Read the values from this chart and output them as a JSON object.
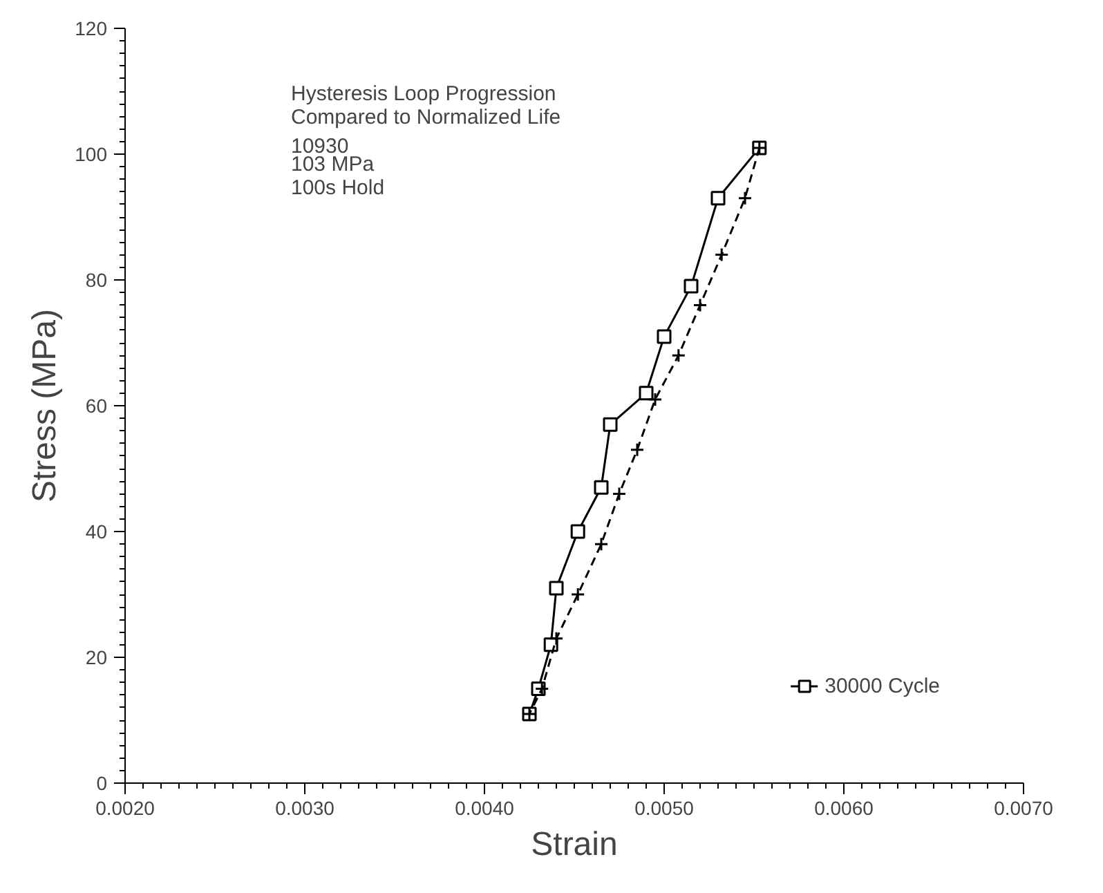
{
  "chart_data": {
    "type": "line",
    "title": "Hysteresis Loop Progression\nCompared to Normalized Life",
    "annotations": [
      "10930",
      "103 MPa",
      "100s Hold"
    ],
    "xlabel": "Strain",
    "ylabel": "Stress (MPa)",
    "xlim": [
      0.002,
      0.007
    ],
    "xticks": [
      {
        "value": 0.002,
        "label": "0.0020"
      },
      {
        "value": 0.003,
        "label": "0.0030"
      },
      {
        "value": 0.004,
        "label": "0.0040"
      },
      {
        "value": 0.005,
        "label": "0.0050"
      },
      {
        "value": 0.006,
        "label": "0.0060"
      },
      {
        "value": 0.007,
        "label": "0.0070"
      }
    ],
    "ylim": [
      0,
      120
    ],
    "yticks": [
      0,
      20,
      40,
      60,
      80,
      100,
      120
    ],
    "grid": false,
    "legend": "bottom right",
    "series": [
      {
        "name": "30000 Cycle",
        "color": "#000000",
        "marker": "square",
        "line_style": "solid",
        "x": [
          0.00425,
          0.0043,
          0.00437,
          0.0044,
          0.00452,
          0.00465,
          0.0047,
          0.0049,
          0.005,
          0.00515,
          0.0053,
          0.00553
        ],
        "values": [
          11,
          15,
          22,
          31,
          40,
          47,
          57,
          62,
          71,
          79,
          93,
          101
        ]
      },
      {
        "color": "#000000",
        "marker": "cross",
        "line_style": "dashed",
        "x": [
          0.00553,
          0.00545,
          0.00532,
          0.0052,
          0.00508,
          0.00495,
          0.00485,
          0.00475,
          0.00465,
          0.00452,
          0.0044,
          0.00432,
          0.00425
        ],
        "values": [
          101,
          93,
          84,
          76,
          68,
          61,
          53,
          46,
          38,
          30,
          23,
          15,
          11
        ]
      }
    ]
  }
}
